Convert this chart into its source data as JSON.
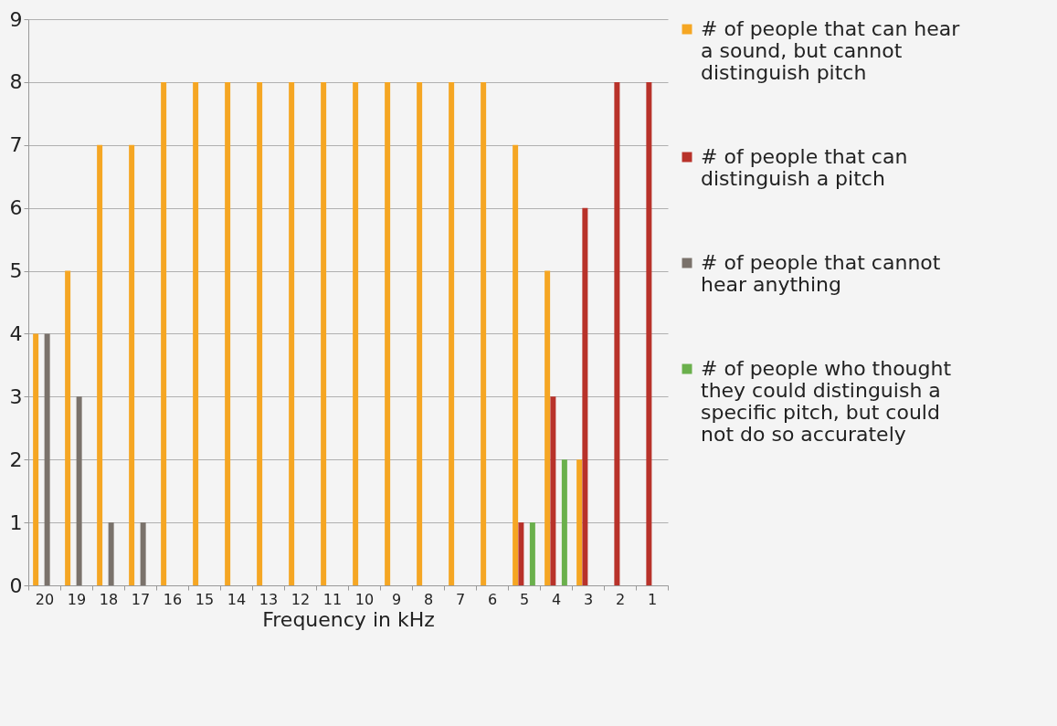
{
  "chart_data": {
    "type": "bar",
    "xlabel": "Frequency in kHz",
    "categories": [
      "20",
      "19",
      "18",
      "17",
      "16",
      "15",
      "14",
      "13",
      "12",
      "11",
      "10",
      "9",
      "8",
      "7",
      "6",
      "5",
      "4",
      "3",
      "2",
      "1"
    ],
    "series": [
      {
        "name": "# of people that can hear a sound, but cannot distinguish pitch",
        "color": "#f5a623",
        "values": [
          4,
          5,
          7,
          7,
          8,
          8,
          8,
          8,
          8,
          8,
          8,
          8,
          8,
          8,
          8,
          7,
          5,
          2,
          0,
          0
        ]
      },
      {
        "name": "# of people that can distinguish a pitch",
        "color": "#b8322a",
        "values": [
          0,
          0,
          0,
          0,
          0,
          0,
          0,
          0,
          0,
          0,
          0,
          0,
          0,
          0,
          0,
          1,
          3,
          6,
          8,
          8
        ]
      },
      {
        "name": "# of people that cannot hear anything",
        "color": "#7a726b",
        "values": [
          4,
          3,
          1,
          1,
          0,
          0,
          0,
          0,
          0,
          0,
          0,
          0,
          0,
          0,
          0,
          0,
          0,
          0,
          0,
          0
        ]
      },
      {
        "name": "# of people who thought they could distinguish a specific pitch, but could not do so accurately",
        "color": "#6ab04c",
        "values": [
          0,
          0,
          0,
          0,
          0,
          0,
          0,
          0,
          0,
          0,
          0,
          0,
          0,
          0,
          0,
          1,
          2,
          0,
          0,
          0
        ]
      }
    ],
    "ylim": [
      0,
      9
    ],
    "yticks": [
      0,
      1,
      2,
      3,
      4,
      5,
      6,
      7,
      8,
      9
    ],
    "grid": "y",
    "legend": "right"
  }
}
